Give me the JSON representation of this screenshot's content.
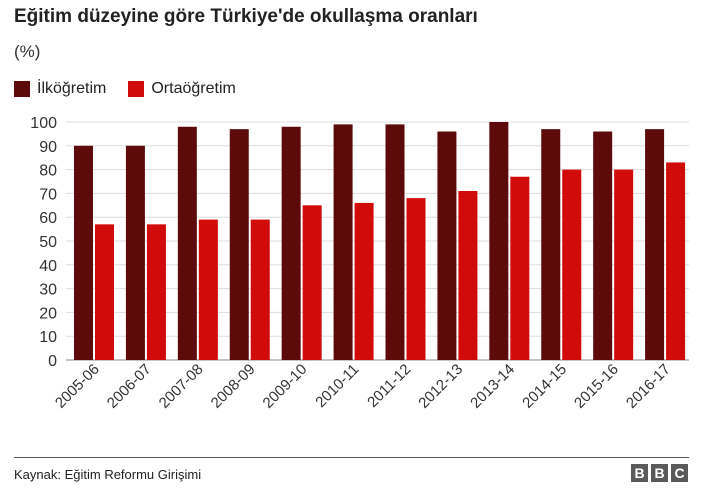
{
  "header": {
    "title": "Eğitim düzeyine göre Türkiye'de okullaşma oranları",
    "subtitle": "(%)"
  },
  "chart_data": {
    "type": "bar",
    "categories": [
      "2005-06",
      "2006-07",
      "2007-08",
      "2008-09",
      "2009-10",
      "2010-11",
      "2011-12",
      "2012-13",
      "2013-14",
      "2014-15",
      "2015-16",
      "2016-17"
    ],
    "series": [
      {
        "name": "İlköğretim",
        "color": "#5c0a0a",
        "values": [
          90,
          90,
          98,
          97,
          98,
          99,
          99,
          96,
          100,
          97,
          96,
          97
        ]
      },
      {
        "name": "Ortaöğretim",
        "color": "#d10a0a",
        "values": [
          57,
          57,
          59,
          59,
          65,
          66,
          68,
          71,
          77,
          80,
          80,
          83
        ]
      }
    ],
    "ylim": [
      0,
      100
    ],
    "yticks": [
      0,
      10,
      20,
      30,
      40,
      50,
      60,
      70,
      80,
      90,
      100
    ],
    "grid": true,
    "legend": "top-left"
  },
  "footer": {
    "source": "Kaynak: Eğitim Reformu Girişimi",
    "logo_letters": [
      "B",
      "B",
      "C"
    ]
  }
}
